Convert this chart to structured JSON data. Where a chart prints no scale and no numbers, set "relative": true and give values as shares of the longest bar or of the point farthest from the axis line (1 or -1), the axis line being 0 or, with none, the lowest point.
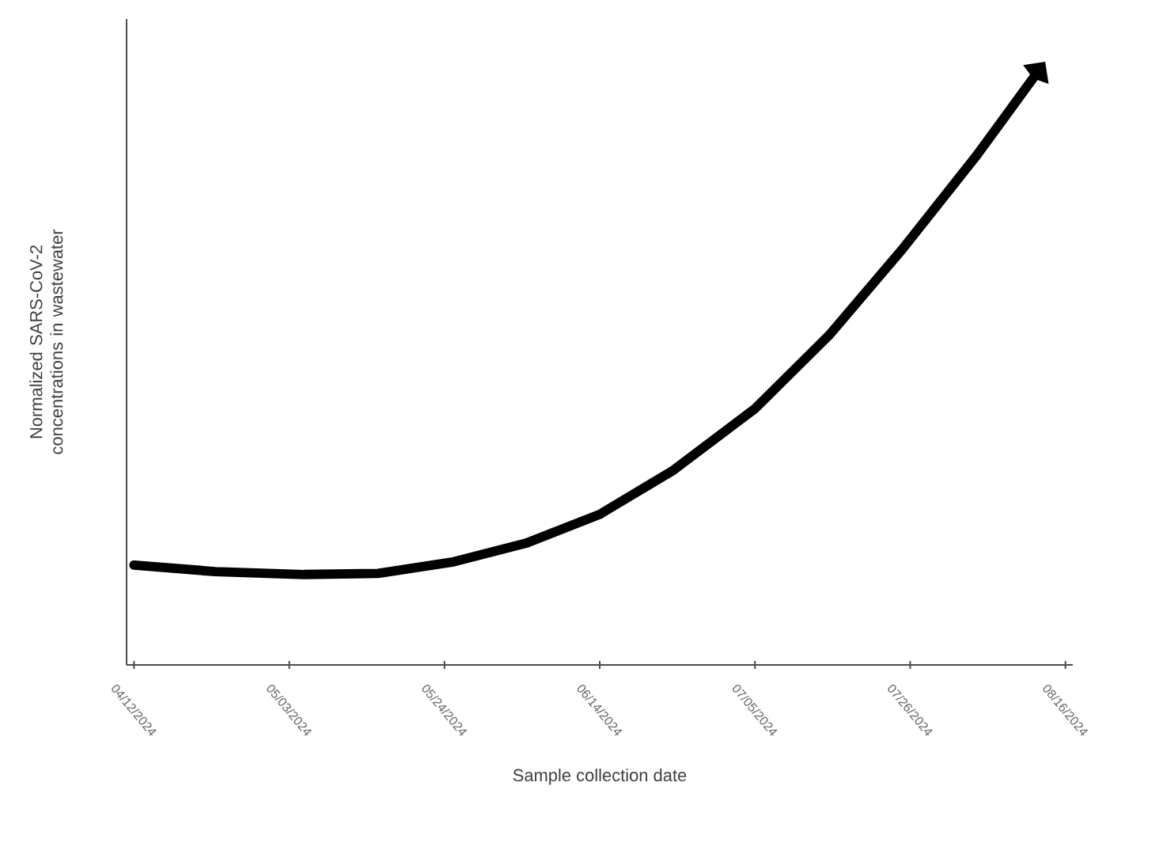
{
  "chart_data": {
    "type": "line",
    "xlabel": "Sample collection date",
    "ylabel": "Normalized SARS-CoV-2 concentrations in wastewater",
    "relative": true,
    "x": [
      "2024-04-12",
      "2024-04-23",
      "2024-05-05",
      "2024-05-15",
      "2024-05-25",
      "2024-06-04",
      "2024-06-14",
      "2024-06-24",
      "2024-07-05",
      "2024-07-15",
      "2024-07-25",
      "2024-08-04",
      "2024-08-12"
    ],
    "series": [
      {
        "color": "#000000",
        "values": [
          0.169,
          0.158,
          0.153,
          0.155,
          0.174,
          0.206,
          0.255,
          0.33,
          0.434,
          0.558,
          0.705,
          0.863,
          1
        ]
      }
    ],
    "xlim": [
      "2024-04-11",
      "2024-08-17"
    ],
    "xticks": [
      {
        "value": "2024-04-12",
        "label": "04/12/2024"
      },
      {
        "value": "2024-05-03",
        "label": "05/03/2024"
      },
      {
        "value": "2024-05-24",
        "label": "05/24/2024"
      },
      {
        "value": "2024-06-14",
        "label": "06/14/2024"
      },
      {
        "value": "2024-07-05",
        "label": "07/05/2024"
      },
      {
        "value": "2024-07-26",
        "label": "07/26/2024"
      },
      {
        "value": "2024-08-16",
        "label": "08/16/2024"
      }
    ],
    "marker": "none",
    "line_style": "solid"
  }
}
